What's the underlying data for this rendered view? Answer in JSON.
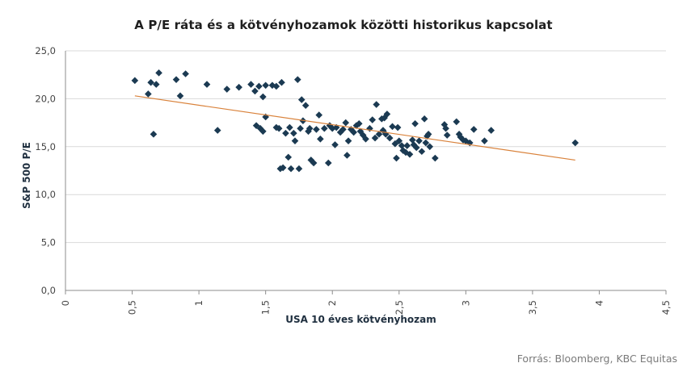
{
  "chart_data": {
    "type": "scatter",
    "title": "A P/E ráta és a kötvényhozamok közötti historikus kapcsolat",
    "xlabel": "USA 10 éves kötvényhozam",
    "ylabel": "S&P 500 P/E",
    "xlim": [
      0,
      4.5
    ],
    "ylim": [
      0,
      25
    ],
    "x_ticks": [
      "0",
      "0,5",
      "1",
      "1,5",
      "2",
      "2,5",
      "3",
      "3,5",
      "4",
      "4,5"
    ],
    "x_tick_values": [
      0,
      0.5,
      1,
      1.5,
      2,
      2.5,
      3,
      3.5,
      4,
      4.5
    ],
    "y_ticks": [
      "0,0",
      "5,0",
      "10,0",
      "15,0",
      "20,0",
      "25,0"
    ],
    "y_tick_values": [
      0,
      5,
      10,
      15,
      20,
      25
    ],
    "grid": "horizontal",
    "marker_color": "#1b3a52",
    "trendline_color": "#d9823b",
    "trendline": {
      "x": [
        0.52,
        3.82
      ],
      "y": [
        20.3,
        13.6
      ]
    },
    "points": [
      [
        0.52,
        21.9
      ],
      [
        0.62,
        20.5
      ],
      [
        0.64,
        21.7
      ],
      [
        0.66,
        16.3
      ],
      [
        0.68,
        21.5
      ],
      [
        0.7,
        22.7
      ],
      [
        0.83,
        22.0
      ],
      [
        0.86,
        20.3
      ],
      [
        0.9,
        22.6
      ],
      [
        1.06,
        21.5
      ],
      [
        1.14,
        16.7
      ],
      [
        1.21,
        21.0
      ],
      [
        1.3,
        21.2
      ],
      [
        1.39,
        21.5
      ],
      [
        1.42,
        20.8
      ],
      [
        1.43,
        17.2
      ],
      [
        1.45,
        21.3
      ],
      [
        1.46,
        16.9
      ],
      [
        1.48,
        16.6
      ],
      [
        1.48,
        20.2
      ],
      [
        1.5,
        21.4
      ],
      [
        1.5,
        18.1
      ],
      [
        1.55,
        21.4
      ],
      [
        1.58,
        17.0
      ],
      [
        1.58,
        21.3
      ],
      [
        1.6,
        16.9
      ],
      [
        1.61,
        12.7
      ],
      [
        1.62,
        21.7
      ],
      [
        1.63,
        12.8
      ],
      [
        1.65,
        16.4
      ],
      [
        1.67,
        13.9
      ],
      [
        1.68,
        17.0
      ],
      [
        1.69,
        12.7
      ],
      [
        1.71,
        16.4
      ],
      [
        1.72,
        15.6
      ],
      [
        1.74,
        22.0
      ],
      [
        1.75,
        12.7
      ],
      [
        1.76,
        16.9
      ],
      [
        1.77,
        19.9
      ],
      [
        1.78,
        17.7
      ],
      [
        1.8,
        19.3
      ],
      [
        1.82,
        16.6
      ],
      [
        1.83,
        16.9
      ],
      [
        1.84,
        13.6
      ],
      [
        1.86,
        13.3
      ],
      [
        1.88,
        16.8
      ],
      [
        1.9,
        18.3
      ],
      [
        1.91,
        15.8
      ],
      [
        1.94,
        16.9
      ],
      [
        1.97,
        13.3
      ],
      [
        1.98,
        17.2
      ],
      [
        2.0,
        16.9
      ],
      [
        2.02,
        15.2
      ],
      [
        2.03,
        17.0
      ],
      [
        2.06,
        16.5
      ],
      [
        2.08,
        16.8
      ],
      [
        2.1,
        17.5
      ],
      [
        2.11,
        14.1
      ],
      [
        2.12,
        15.6
      ],
      [
        2.14,
        16.8
      ],
      [
        2.16,
        16.5
      ],
      [
        2.18,
        17.2
      ],
      [
        2.2,
        17.4
      ],
      [
        2.21,
        16.6
      ],
      [
        2.23,
        16.2
      ],
      [
        2.25,
        15.8
      ],
      [
        2.28,
        16.9
      ],
      [
        2.3,
        17.8
      ],
      [
        2.32,
        15.9
      ],
      [
        2.33,
        19.4
      ],
      [
        2.35,
        16.3
      ],
      [
        2.37,
        17.9
      ],
      [
        2.38,
        16.7
      ],
      [
        2.39,
        18.0
      ],
      [
        2.4,
        16.3
      ],
      [
        2.41,
        18.4
      ],
      [
        2.43,
        15.9
      ],
      [
        2.45,
        17.1
      ],
      [
        2.47,
        15.3
      ],
      [
        2.48,
        13.8
      ],
      [
        2.49,
        17.0
      ],
      [
        2.5,
        15.6
      ],
      [
        2.52,
        15.1
      ],
      [
        2.53,
        14.6
      ],
      [
        2.55,
        14.4
      ],
      [
        2.56,
        15.1
      ],
      [
        2.58,
        14.2
      ],
      [
        2.6,
        15.7
      ],
      [
        2.61,
        15.2
      ],
      [
        2.62,
        17.4
      ],
      [
        2.63,
        14.9
      ],
      [
        2.65,
        15.6
      ],
      [
        2.67,
        14.5
      ],
      [
        2.69,
        17.9
      ],
      [
        2.7,
        15.4
      ],
      [
        2.71,
        16.1
      ],
      [
        2.72,
        16.3
      ],
      [
        2.73,
        15.0
      ],
      [
        2.77,
        13.8
      ],
      [
        2.84,
        17.3
      ],
      [
        2.85,
        16.9
      ],
      [
        2.86,
        16.2
      ],
      [
        2.93,
        17.6
      ],
      [
        2.95,
        16.3
      ],
      [
        2.96,
        16.0
      ],
      [
        2.98,
        15.7
      ],
      [
        3.0,
        15.6
      ],
      [
        3.03,
        15.4
      ],
      [
        3.06,
        16.8
      ],
      [
        3.14,
        15.6
      ],
      [
        3.19,
        16.7
      ],
      [
        3.82,
        15.4
      ]
    ]
  },
  "source": "Forrás: Bloomberg,  KBC Equitas"
}
